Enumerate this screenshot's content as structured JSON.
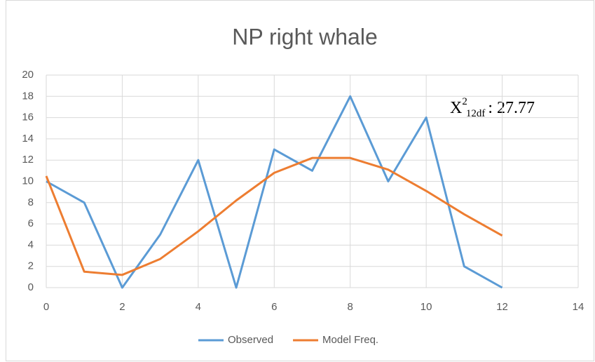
{
  "chart_data": {
    "type": "line",
    "title": "NP right whale",
    "x": [
      0,
      1,
      2,
      3,
      4,
      5,
      6,
      7,
      8,
      9,
      10,
      11,
      12
    ],
    "series": [
      {
        "name": "Observed",
        "color": "#5b9bd5",
        "values": [
          10,
          8,
          0,
          5,
          12,
          0,
          13,
          11,
          18,
          10,
          16,
          2,
          0
        ]
      },
      {
        "name": "Model Freq.",
        "color": "#ed7d31",
        "values": [
          10.5,
          1.5,
          1.2,
          2.7,
          5.3,
          8.2,
          10.8,
          12.2,
          12.2,
          11.1,
          9.1,
          6.9,
          4.9
        ]
      }
    ],
    "xlim": [
      0,
      14
    ],
    "xticks": [
      0,
      2,
      4,
      6,
      8,
      10,
      12,
      14
    ],
    "ylim": [
      0,
      20
    ],
    "yticks": [
      0,
      2,
      4,
      6,
      8,
      10,
      12,
      14,
      16,
      18,
      20
    ],
    "grid": true,
    "legend": "bottom",
    "annotation": {
      "symbol": "X",
      "superscript": "2",
      "subscript": "12df",
      "value": ": 27.77"
    }
  }
}
